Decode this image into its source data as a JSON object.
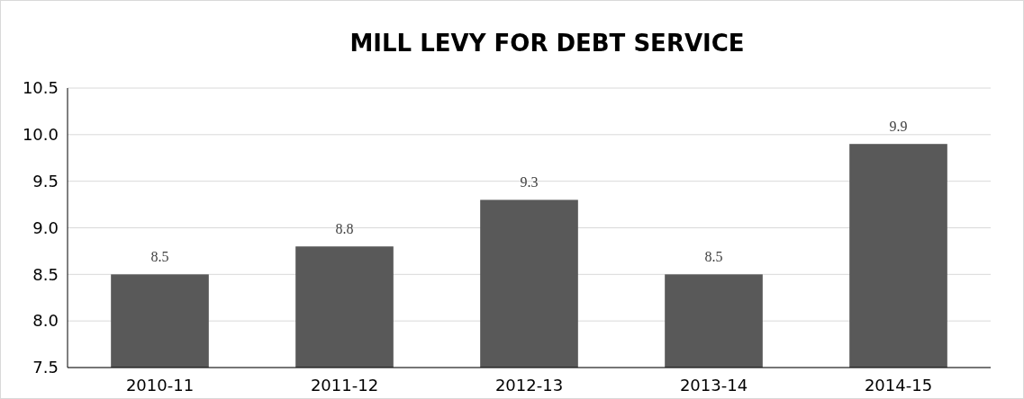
{
  "chart_data": {
    "type": "bar",
    "title": "MILL LEVY FOR DEBT SERVICE",
    "categories": [
      "2010-11",
      "2011-12",
      "2012-13",
      "2013-14",
      "2014-15"
    ],
    "values": [
      8.5,
      8.8,
      9.3,
      8.5,
      9.9
    ],
    "color": "#595959",
    "ylim": [
      7.5,
      10.5
    ],
    "yticks": [
      {
        "value": 7.5,
        "label": "7.5"
      },
      {
        "value": 8,
        "label": "8.0"
      },
      {
        "value": 8.5,
        "label": "8.5"
      },
      {
        "value": 9,
        "label": "9.0"
      },
      {
        "value": 9.5,
        "label": "9.5"
      },
      {
        "value": 10,
        "label": "10.0"
      },
      {
        "value": 10.5,
        "label": "10.5"
      }
    ],
    "grid": "y",
    "data_labels": true
  }
}
